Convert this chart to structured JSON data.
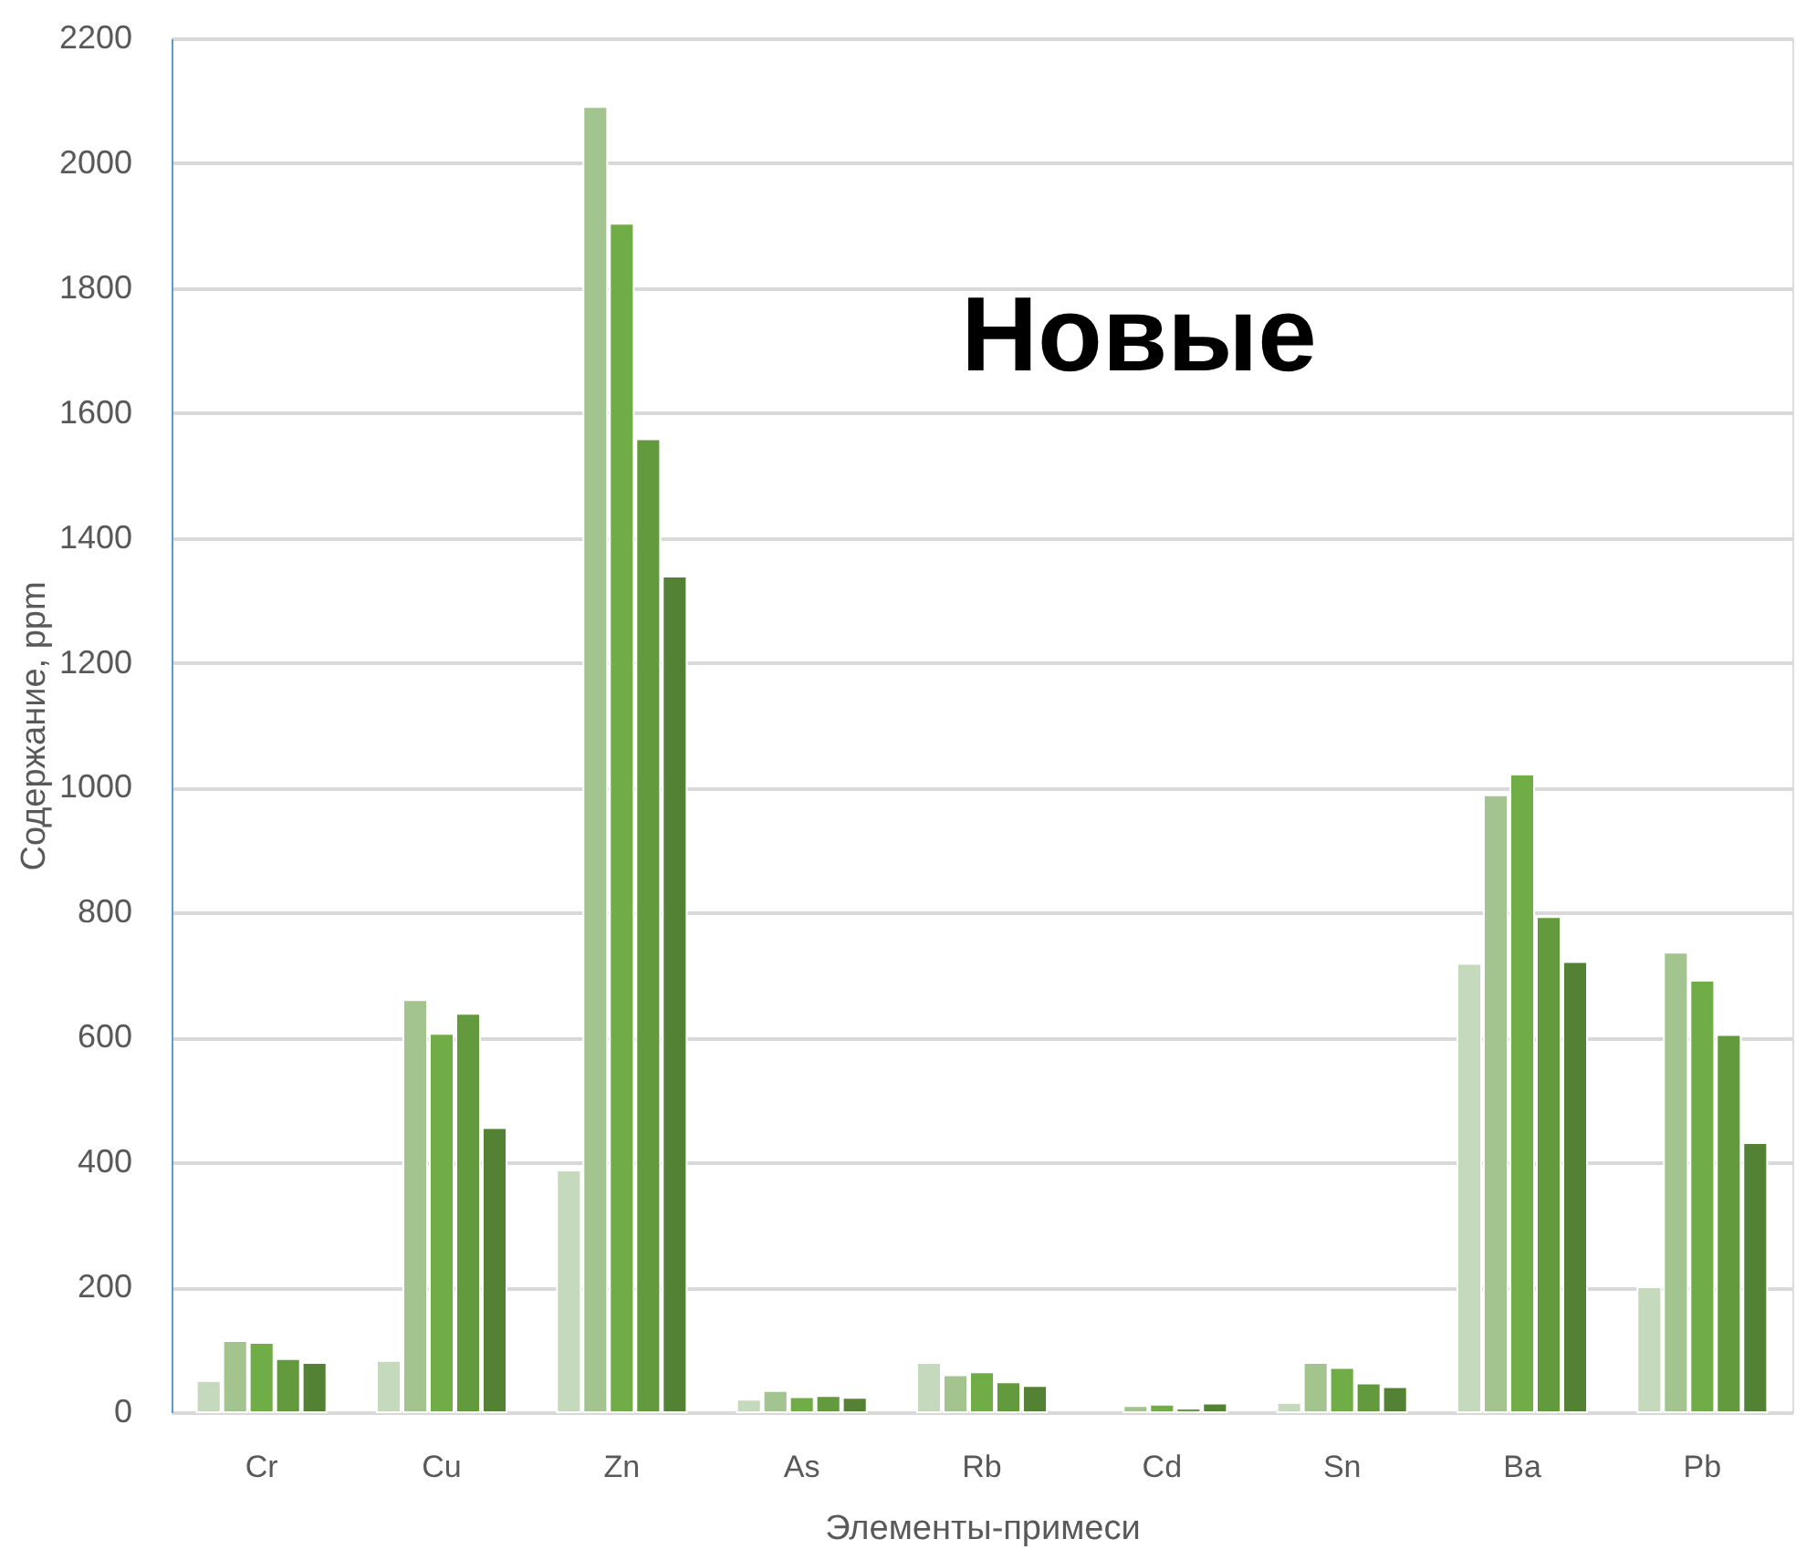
{
  "chart_data": {
    "type": "bar",
    "xlabel": "Элементы-примеси",
    "ylabel": "Содержание, ppm",
    "categories": [
      "Cr",
      "Cu",
      "Zn",
      "As",
      "Rb",
      "Cd",
      "Sn",
      "Ba",
      "Pb"
    ],
    "series": [
      {
        "color": "#c5d9bc",
        "values": [
          50,
          82,
          387,
          20,
          79,
          null,
          15,
          718,
          200
        ]
      },
      {
        "color": "#a3c48f",
        "values": [
          114,
          660,
          2090,
          34,
          59,
          10,
          79,
          988,
          736
        ]
      },
      {
        "color": "#70ad47",
        "values": [
          111,
          606,
          1903,
          24,
          64,
          12,
          71,
          1021,
          691
        ]
      },
      {
        "color": "#639a3e",
        "values": [
          85,
          638,
          1558,
          26,
          48,
          6,
          46,
          793,
          604
        ]
      },
      {
        "color": "#548235",
        "values": [
          79,
          455,
          1338,
          23,
          42,
          14,
          40,
          721,
          431
        ]
      }
    ],
    "ylim": [
      0,
      2200
    ],
    "yticks": [
      0,
      200,
      400,
      600,
      800,
      1000,
      1200,
      1400,
      1600,
      1800,
      2000,
      2200
    ],
    "grid": "y",
    "legend": false,
    "annotations": [
      "Новые"
    ]
  }
}
